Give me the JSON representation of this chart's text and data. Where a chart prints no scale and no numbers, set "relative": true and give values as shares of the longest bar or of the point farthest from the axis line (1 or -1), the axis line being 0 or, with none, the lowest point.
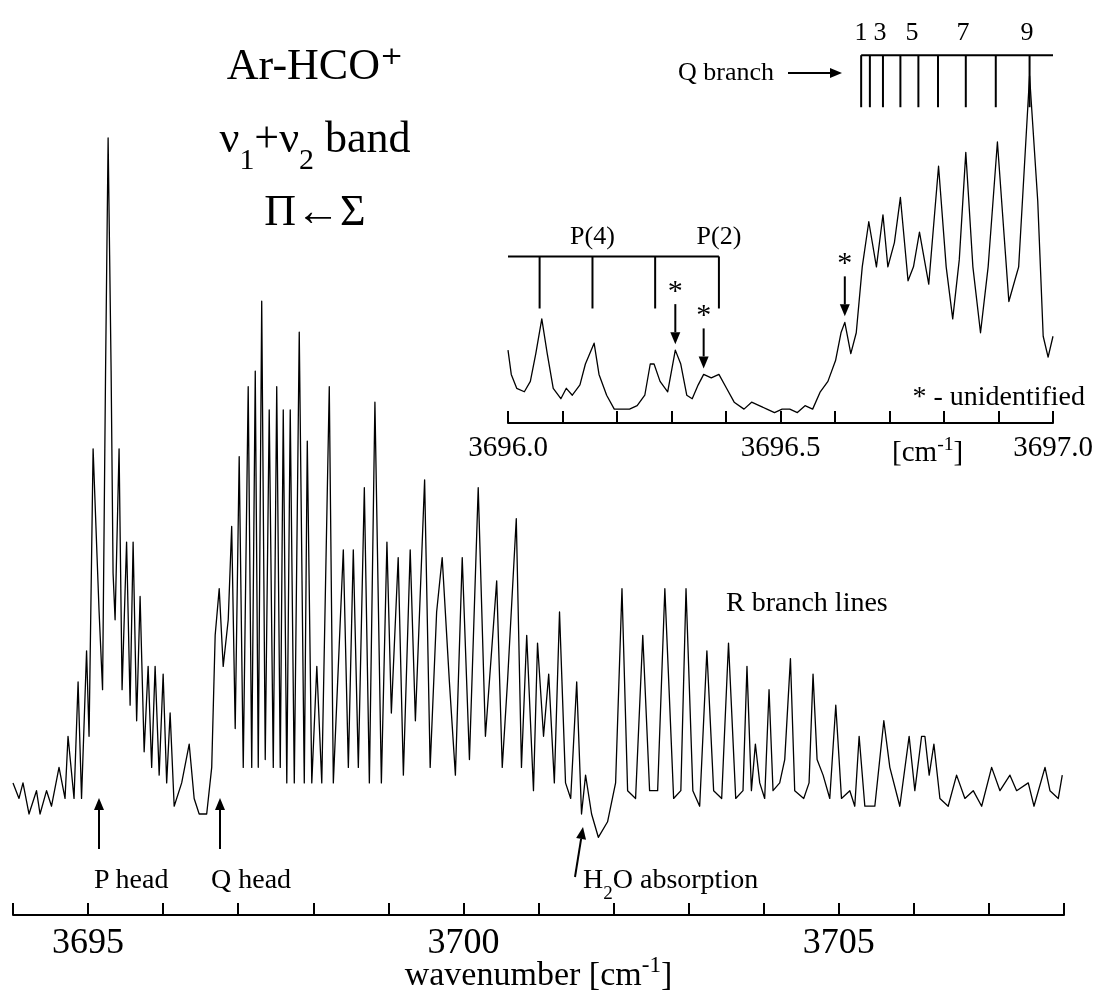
{
  "chart_data": [
    {
      "type": "line",
      "title": "Ar-HCO⁺\nν$_{1}$+ν$_{2}$ band\nΠ←Σ",
      "xlabel": "wavenumber [cm$^{-1}$]",
      "relative": true,
      "tick_labels": "x",
      "xlim": [
        3694.0,
        3708.0
      ],
      "xticks": [
        {
          "value": 3694,
          "label": null
        },
        3695,
        {
          "value": 3696,
          "label": null
        },
        {
          "value": 3697,
          "label": null
        },
        {
          "value": 3698,
          "label": null
        },
        {
          "value": 3699,
          "label": null
        },
        3700,
        {
          "value": 3701,
          "label": null
        },
        {
          "value": 3702,
          "label": null
        },
        {
          "value": 3703,
          "label": null
        },
        {
          "value": 3704,
          "label": null
        },
        3705,
        {
          "value": 3706,
          "label": null
        },
        {
          "value": 3707,
          "label": null
        },
        {
          "value": 3708,
          "label": null
        }
      ],
      "x": [
        3694.0,
        3694.08,
        3694.133,
        3694.213,
        3694.313,
        3694.36,
        3694.447,
        3694.513,
        3694.613,
        3694.693,
        3694.733,
        3694.813,
        3694.867,
        3694.913,
        3694.98,
        3695.013,
        3695.067,
        3695.12,
        3695.147,
        3695.193,
        3695.233,
        3695.267,
        3695.307,
        3695.333,
        3695.36,
        3695.413,
        3695.453,
        3695.513,
        3695.56,
        3695.6,
        3695.647,
        3695.693,
        3695.747,
        3695.8,
        3695.847,
        3695.893,
        3695.947,
        3696.0,
        3696.047,
        3696.093,
        3696.147,
        3696.247,
        3696.347,
        3696.413,
        3696.48,
        3696.58,
        3696.647,
        3696.693,
        3696.747,
        3696.8,
        3696.867,
        3696.913,
        3696.96,
        3697.013,
        3697.067,
        3697.133,
        3697.18,
        3697.227,
        3697.267,
        3697.313,
        3697.36,
        3697.413,
        3697.467,
        3697.513,
        3697.56,
        3697.6,
        3697.647,
        3697.693,
        3697.747,
        3697.813,
        3697.88,
        3697.92,
        3697.98,
        3698.047,
        3698.113,
        3698.213,
        3698.267,
        3698.4,
        3698.467,
        3698.533,
        3698.6,
        3698.68,
        3698.747,
        3698.821,
        3698.907,
        3698.981,
        3699.04,
        3699.131,
        3699.2,
        3699.291,
        3699.36,
        3699.483,
        3699.557,
        3699.643,
        3699.717,
        3699.813,
        3699.893,
        3699.984,
        3700.08,
        3700.197,
        3700.293,
        3700.443,
        3700.517,
        3700.587,
        3700.704,
        3700.773,
        3700.843,
        3700.933,
        3700.987,
        3701.067,
        3701.136,
        3701.211,
        3701.28,
        3701.36,
        3701.429,
        3701.509,
        3701.573,
        3701.627,
        3701.707,
        3701.797,
        3701.92,
        3702.027,
        3702.112,
        3702.187,
        3702.293,
        3702.389,
        3702.48,
        3702.587,
        3702.683,
        3702.8,
        3702.896,
        3702.965,
        3703.056,
        3703.147,
        3703.243,
        3703.333,
        3703.44,
        3703.531,
        3703.627,
        3703.724,
        3703.777,
        3703.836,
        3703.889,
        3703.947,
        3704.013,
        3704.071,
        3704.124,
        3704.213,
        3704.28,
        3704.356,
        3704.413,
        3704.533,
        3704.604,
        3704.657,
        3704.711,
        3704.791,
        3704.88,
        3704.96,
        3705.036,
        3705.147,
        3705.213,
        3705.271,
        3705.347,
        3705.48,
        3705.6,
        3705.68,
        3705.813,
        3705.937,
        3706.013,
        3706.103,
        3706.147,
        3706.204,
        3706.267,
        3706.347,
        3706.457,
        3706.569,
        3706.68,
        3706.791,
        3706.903,
        3707.036,
        3707.147,
        3707.28,
        3707.369,
        3707.524,
        3707.6,
        3707.747,
        3707.813,
        3707.924,
        3707.977
      ],
      "series": [
        {
          "color": "#000000",
          "values": [
            0.17,
            0.15,
            0.17,
            0.13,
            0.16,
            0.13,
            0.16,
            0.14,
            0.19,
            0.15,
            0.23,
            0.15,
            0.3,
            0.15,
            0.34,
            0.23,
            0.6,
            0.46,
            0.39,
            0.29,
            0.7,
            1,
            0.7,
            0.44,
            0.38,
            0.6,
            0.29,
            0.48,
            0.27,
            0.48,
            0.25,
            0.41,
            0.21,
            0.32,
            0.19,
            0.32,
            0.18,
            0.31,
            0.17,
            0.26,
            0.14,
            0.17,
            0.22,
            0.15,
            0.13,
            0.13,
            0.19,
            0.36,
            0.42,
            0.32,
            0.38,
            0.5,
            0.24,
            0.59,
            0.19,
            0.68,
            0.19,
            0.7,
            0.19,
            0.79,
            0.2,
            0.65,
            0.19,
            0.68,
            0.19,
            0.65,
            0.17,
            0.65,
            0.17,
            0.75,
            0.17,
            0.61,
            0.17,
            0.32,
            0.17,
            0.68,
            0.17,
            0.47,
            0.19,
            0.47,
            0.19,
            0.55,
            0.17,
            0.66,
            0.17,
            0.48,
            0.26,
            0.46,
            0.18,
            0.47,
            0.25,
            0.56,
            0.19,
            0.39,
            0.46,
            0.3,
            0.18,
            0.46,
            0.2,
            0.55,
            0.23,
            0.43,
            0.19,
            0.3,
            0.51,
            0.19,
            0.36,
            0.16,
            0.35,
            0.23,
            0.31,
            0.17,
            0.39,
            0.17,
            0.15,
            0.3,
            0.13,
            0.18,
            0.13,
            0.1,
            0.12,
            0.17,
            0.42,
            0.16,
            0.15,
            0.36,
            0.16,
            0.16,
            0.42,
            0.15,
            0.16,
            0.42,
            0.16,
            0.14,
            0.34,
            0.16,
            0.15,
            0.35,
            0.15,
            0.16,
            0.32,
            0.16,
            0.22,
            0.17,
            0.15,
            0.29,
            0.16,
            0.17,
            0.2,
            0.33,
            0.16,
            0.15,
            0.17,
            0.31,
            0.2,
            0.18,
            0.15,
            0.27,
            0.15,
            0.16,
            0.14,
            0.23,
            0.14,
            0.14,
            0.25,
            0.19,
            0.14,
            0.23,
            0.16,
            0.23,
            0.23,
            0.18,
            0.22,
            0.15,
            0.14,
            0.18,
            0.15,
            0.16,
            0.14,
            0.19,
            0.16,
            0.18,
            0.16,
            0.17,
            0.14,
            0.19,
            0.16,
            0.15,
            0.18
          ]
        }
      ],
      "annotations": [
        "P head",
        "Q head",
        "H$_{2}$O absorption",
        "R branch lines"
      ]
    },
    {
      "type": "line",
      "xlabel": "[cm$^{-1}$]",
      "relative": true,
      "tick_labels": "x",
      "xlim": [
        3696.0,
        3697.0
      ],
      "xticks": [
        {
          "value": 3696.0,
          "label": "3696.0"
        },
        {
          "value": 3696.1,
          "label": null
        },
        {
          "value": 3696.2,
          "label": null
        },
        {
          "value": 3696.3,
          "label": null
        },
        {
          "value": 3696.4,
          "label": null
        },
        {
          "value": 3696.5,
          "label": "3696.5"
        },
        {
          "value": 3696.6,
          "label": null
        },
        {
          "value": 3696.7,
          "label": null
        },
        {
          "value": 3696.8,
          "label": null
        },
        {
          "value": 3696.9,
          "label": null
        },
        {
          "value": 3697.0,
          "label": "3697.0"
        }
      ],
      "x": [
        3696.0,
        3696.006,
        3696.016,
        3696.03,
        3696.041,
        3696.051,
        3696.062,
        3696.072,
        3696.083,
        3696.097,
        3696.107,
        3696.118,
        3696.132,
        3696.142,
        3696.158,
        3696.167,
        3696.181,
        3696.195,
        3696.209,
        3696.223,
        3696.237,
        3696.251,
        3696.261,
        3696.268,
        3696.279,
        3696.293,
        3696.307,
        3696.317,
        3696.328,
        3696.338,
        3696.349,
        3696.359,
        3696.373,
        3696.387,
        3696.401,
        3696.415,
        3696.433,
        3696.447,
        3696.461,
        3696.475,
        3696.489,
        3696.503,
        3696.517,
        3696.531,
        3696.545,
        3696.559,
        3696.573,
        3696.587,
        3696.601,
        3696.611,
        3696.618,
        3696.629,
        3696.639,
        3696.65,
        3696.662,
        3696.676,
        3696.688,
        3696.697,
        3696.709,
        3696.72,
        3696.734,
        3696.744,
        3696.755,
        3696.772,
        3696.79,
        3696.804,
        3696.816,
        3696.828,
        3696.84,
        3696.853,
        3696.867,
        3696.881,
        3696.898,
        3696.919,
        3696.937,
        3696.957,
        3696.972,
        3696.982,
        3696.991,
        3697.0
      ],
      "series": [
        {
          "color": "#000000",
          "values": [
            0.21,
            0.14,
            0.1,
            0.09,
            0.12,
            0.2,
            0.3,
            0.2,
            0.1,
            0.07,
            0.1,
            0.08,
            0.11,
            0.17,
            0.23,
            0.14,
            0.08,
            0.04,
            0.04,
            0.04,
            0.05,
            0.08,
            0.17,
            0.17,
            0.12,
            0.09,
            0.21,
            0.17,
            0.08,
            0.07,
            0.11,
            0.14,
            0.13,
            0.14,
            0.1,
            0.06,
            0.04,
            0.06,
            0.05,
            0.04,
            0.03,
            0.04,
            0.04,
            0.03,
            0.05,
            0.04,
            0.09,
            0.12,
            0.18,
            0.26,
            0.29,
            0.2,
            0.26,
            0.45,
            0.58,
            0.45,
            0.6,
            0.45,
            0.52,
            0.65,
            0.41,
            0.45,
            0.55,
            0.4,
            0.74,
            0.45,
            0.3,
            0.47,
            0.78,
            0.45,
            0.26,
            0.45,
            0.81,
            0.35,
            0.45,
            1,
            0.64,
            0.25,
            0.19,
            0.25
          ]
        }
      ],
      "ref_lines": [
        {
          "axis": "x",
          "value": 3696.058
        },
        {
          "axis": "x",
          "value": 3696.155,
          "label": "P(4)"
        },
        {
          "axis": "x",
          "value": 3696.27
        },
        {
          "axis": "x",
          "value": 3696.387,
          "label": "P(2)"
        },
        {
          "axis": "x",
          "value": 3696.648
        },
        {
          "axis": "x",
          "value": 3696.664
        },
        {
          "axis": "x",
          "value": 3696.688
        },
        {
          "axis": "x",
          "value": 3696.72
        },
        {
          "axis": "x",
          "value": 3696.753
        },
        {
          "axis": "x",
          "value": 3696.789
        },
        {
          "axis": "x",
          "value": 3696.84
        },
        {
          "axis": "x",
          "value": 3696.895
        },
        {
          "axis": "x",
          "value": 3696.957
        }
      ],
      "annotations": [
        {
          "text": "*",
          "x": 3696.307,
          "y": 0.21
        },
        {
          "text": "*",
          "x": 3696.359,
          "y": 0.14
        },
        {
          "text": "*",
          "x": 3696.618,
          "y": 0.29
        },
        "1",
        "3",
        "5",
        "7",
        "9",
        "Q branch",
        "* - unidentified"
      ]
    }
  ]
}
